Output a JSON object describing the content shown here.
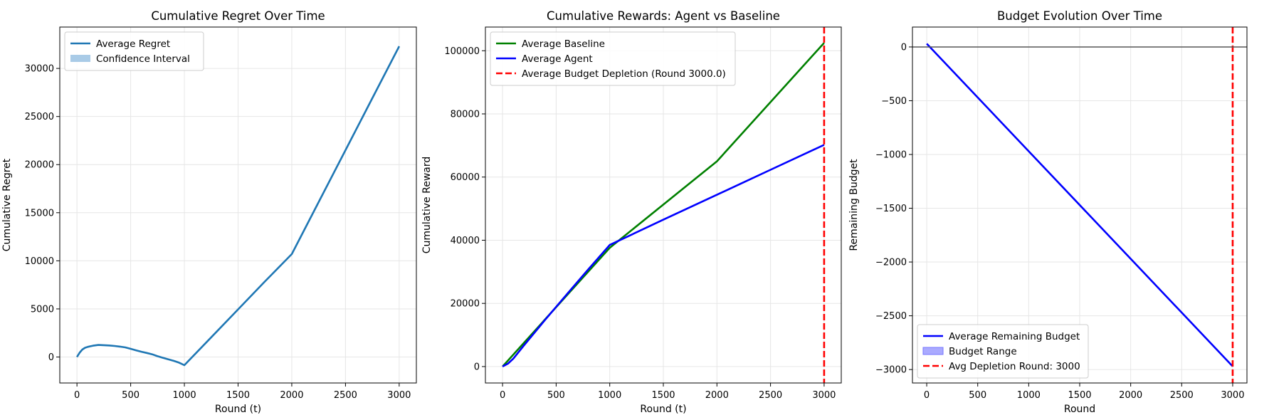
{
  "chart_data": [
    {
      "type": "line",
      "title": "Cumulative Regret Over Time",
      "xlabel": "Round (t)",
      "ylabel": "Cumulative Regret",
      "xlim": [
        -160,
        3160
      ],
      "ylim": [
        -2700,
        34300
      ],
      "xticks": [
        0,
        500,
        1000,
        1500,
        2000,
        2500,
        3000
      ],
      "yticks": [
        0,
        5000,
        10000,
        15000,
        20000,
        25000,
        30000
      ],
      "grid": true,
      "legend_position": "top-left",
      "legend": [
        "Average Regret",
        "Confidence Interval"
      ],
      "series": [
        {
          "name": "Average Regret",
          "color": "#1f77b4",
          "kind": "line",
          "x": [
            0,
            25,
            50,
            75,
            100,
            150,
            200,
            250,
            300,
            350,
            400,
            450,
            500,
            550,
            600,
            650,
            700,
            750,
            800,
            850,
            900,
            950,
            1000,
            1250,
            1500,
            1750,
            2000,
            2250,
            2500,
            2750,
            3000
          ],
          "y": [
            0,
            450,
            780,
            960,
            1050,
            1180,
            1250,
            1230,
            1200,
            1150,
            1080,
            1000,
            850,
            700,
            550,
            420,
            280,
            80,
            -80,
            -240,
            -400,
            -580,
            -850,
            2050,
            4950,
            7850,
            10700,
            16100,
            21500,
            26900,
            32300
          ]
        },
        {
          "name": "Confidence Interval",
          "color": "#a9cbe7",
          "kind": "band"
        }
      ]
    },
    {
      "type": "line",
      "title": "Cumulative Rewards: Agent vs Baseline",
      "xlabel": "Round (t)",
      "ylabel": "Cumulative Reward",
      "xlim": [
        -160,
        3160
      ],
      "ylim": [
        -5200,
        107500
      ],
      "xticks": [
        0,
        500,
        1000,
        1500,
        2000,
        2500,
        3000
      ],
      "yticks": [
        0,
        20000,
        40000,
        60000,
        80000,
        100000
      ],
      "grid": true,
      "legend_position": "top-left",
      "legend": [
        "Average Baseline",
        "Average Agent",
        "Average Budget Depletion (Round 3000.0)"
      ],
      "series": [
        {
          "name": "Average Baseline",
          "color": "#008000",
          "kind": "line",
          "x": [
            0,
            1000,
            2000,
            3000
          ],
          "y": [
            0,
            37600,
            65000,
            102500
          ]
        },
        {
          "name": "Average Agent",
          "color": "#0000ff",
          "kind": "line",
          "x": [
            0,
            50,
            100,
            200,
            400,
            600,
            800,
            1000,
            1500,
            2000,
            2500,
            3000
          ],
          "y": [
            0,
            900,
            2500,
            6700,
            14900,
            22900,
            30800,
            38500,
            46500,
            54400,
            62300,
            70200
          ]
        },
        {
          "name": "Average Budget Depletion (Round 3000.0)",
          "color": "#ff0000",
          "kind": "vline",
          "x": 3000
        }
      ]
    },
    {
      "type": "line",
      "title": "Budget Evolution Over Time",
      "xlabel": "Round",
      "ylabel": "Remaining Budget",
      "xlim": [
        -140,
        3140
      ],
      "ylim": [
        -3125,
        185
      ],
      "xticks": [
        0,
        500,
        1000,
        1500,
        2000,
        2500,
        3000
      ],
      "yticks": [
        0,
        -500,
        -1000,
        -1500,
        -2000,
        -2500,
        -3000
      ],
      "grid": true,
      "legend_position": "bottom-left",
      "legend": [
        "Average Remaining Budget",
        "Budget Range",
        "Avg Depletion Round: 3000"
      ],
      "series": [
        {
          "name": "Average Remaining Budget",
          "color": "#0000ff",
          "kind": "line",
          "x": [
            0,
            3000
          ],
          "y": [
            30,
            -2970
          ]
        },
        {
          "name": "Budget Range",
          "color": "#aaaaff",
          "kind": "band"
        },
        {
          "name": "Avg Depletion Round: 3000",
          "color": "#ff0000",
          "kind": "vline",
          "x": 3000
        },
        {
          "name": "zero-line",
          "color": "#555555",
          "kind": "hline",
          "y": 0
        }
      ]
    }
  ]
}
